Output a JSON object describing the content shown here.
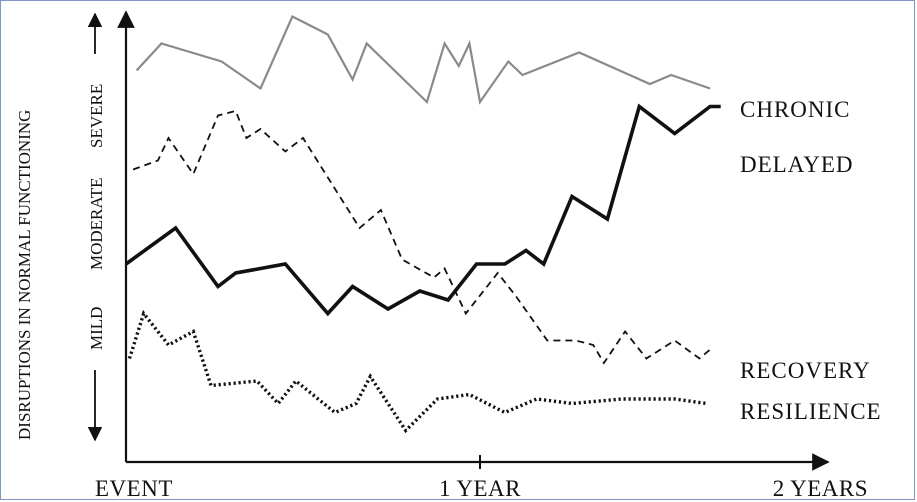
{
  "chart_data": {
    "type": "line",
    "ylabel": "DISRUPTIONS IN NORMAL FUNCTIONING",
    "y_levels": [
      "MILD",
      "MODERATE",
      "SEVERE"
    ],
    "x_ticks": [
      {
        "label": "EVENT",
        "x": 0
      },
      {
        "label": "1 YEAR",
        "x": 1
      },
      {
        "label": "2 YEARS",
        "x": 2
      }
    ],
    "xlim": [
      0,
      2
    ],
    "ylim": [
      0,
      10
    ],
    "series": [
      {
        "name": "CHRONIC",
        "style": "solid-thin",
        "color": "#8a8a8a",
        "x": [
          0.03,
          0.1,
          0.27,
          0.38,
          0.47,
          0.57,
          0.64,
          0.68,
          0.85,
          0.9,
          0.94,
          0.97,
          1.0,
          1.08,
          1.12,
          1.28,
          1.48,
          1.54,
          1.65
        ],
        "y": [
          8.7,
          9.3,
          8.9,
          8.3,
          9.9,
          9.5,
          8.5,
          9.3,
          8.0,
          9.3,
          8.8,
          9.3,
          8.0,
          8.9,
          8.6,
          9.1,
          8.4,
          8.6,
          8.3
        ]
      },
      {
        "name": "DELAYED",
        "style": "solid-bold",
        "color": "#111111",
        "x": [
          0.0,
          0.14,
          0.26,
          0.31,
          0.45,
          0.57,
          0.64,
          0.74,
          0.83,
          0.91,
          0.99,
          1.07,
          1.13,
          1.18,
          1.26,
          1.36,
          1.45,
          1.55,
          1.65,
          1.68
        ],
        "y": [
          4.4,
          5.2,
          3.9,
          4.2,
          4.4,
          3.3,
          3.9,
          3.4,
          3.8,
          3.6,
          4.4,
          4.4,
          4.7,
          4.4,
          5.9,
          5.4,
          7.9,
          7.3,
          7.9,
          7.9
        ]
      },
      {
        "name": "RECOVERY",
        "style": "dashed",
        "color": "#111111",
        "x": [
          0.02,
          0.09,
          0.12,
          0.19,
          0.26,
          0.31,
          0.34,
          0.38,
          0.45,
          0.5,
          0.66,
          0.72,
          0.78,
          0.87,
          0.9,
          0.96,
          1.05,
          1.1,
          1.19,
          1.27,
          1.32,
          1.35,
          1.41,
          1.47,
          1.55,
          1.62,
          1.65
        ],
        "y": [
          6.5,
          6.7,
          7.2,
          6.4,
          7.7,
          7.8,
          7.2,
          7.4,
          6.9,
          7.2,
          5.2,
          5.6,
          4.5,
          4.1,
          4.3,
          3.3,
          4.2,
          3.7,
          2.7,
          2.7,
          2.6,
          2.2,
          2.9,
          2.3,
          2.7,
          2.3,
          2.5
        ]
      },
      {
        "name": "RESILIENCE",
        "style": "dotted",
        "color": "#111111",
        "x": [
          0.01,
          0.05,
          0.12,
          0.19,
          0.24,
          0.37,
          0.43,
          0.48,
          0.59,
          0.65,
          0.69,
          0.79,
          0.88,
          0.97,
          1.07,
          1.16,
          1.26,
          1.4,
          1.55,
          1.64
        ],
        "y": [
          2.3,
          3.3,
          2.6,
          2.9,
          1.7,
          1.8,
          1.3,
          1.8,
          1.1,
          1.3,
          1.9,
          0.7,
          1.4,
          1.5,
          1.1,
          1.4,
          1.3,
          1.4,
          1.4,
          1.3
        ]
      }
    ]
  }
}
